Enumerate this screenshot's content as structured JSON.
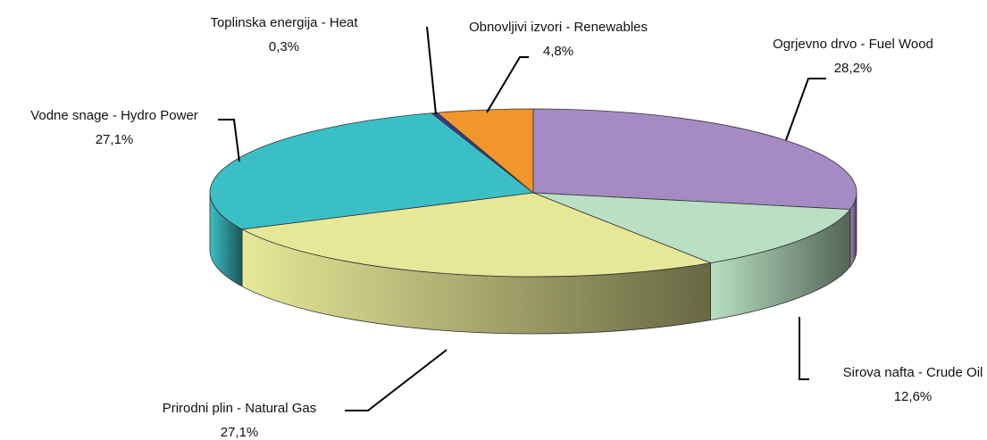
{
  "chart_data": {
    "type": "pie",
    "categories": [
      "Ogrjevno drvo - Fuel Wood",
      "Sirova nafta - Crude Oil",
      "Prirodni plin - Natural Gas",
      "Vodne snage - Hydro Power",
      "Toplinska energija - Heat",
      "Obnovljivi izvori - Renewables"
    ],
    "values": [
      28.2,
      12.6,
      27.1,
      27.1,
      0.3,
      4.8
    ],
    "value_labels": [
      "28,2%",
      "12,6%",
      "27,1%",
      "27,1%",
      "0,3%",
      "4,8%"
    ],
    "colors": [
      "#a68ac4",
      "#b9e0c2",
      "#e6e898",
      "#3bbfc6",
      "#353c8c",
      "#f0962a"
    ]
  }
}
